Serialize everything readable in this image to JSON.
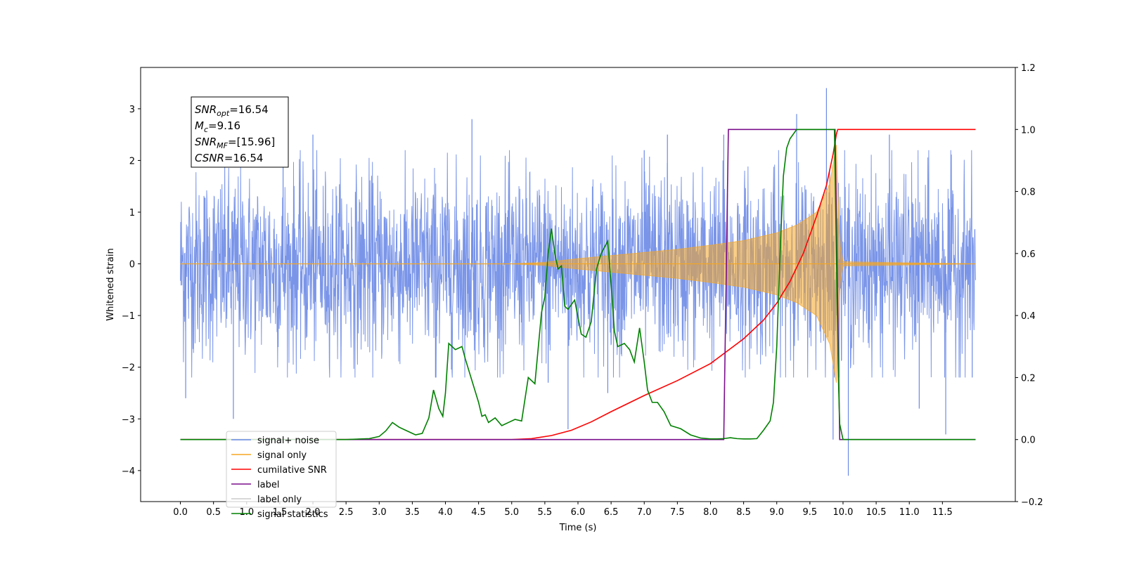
{
  "chart_data": {
    "type": "line",
    "title": "",
    "xlabel": "Time (s)",
    "ylabel": "Whitened strain",
    "y2label": "",
    "xlim": [
      -0.6,
      12.6
    ],
    "ylim": [
      -4.6,
      3.8
    ],
    "y2lim": [
      -0.2,
      1.2
    ],
    "xticks": [
      0.0,
      0.5,
      1.0,
      1.5,
      2.0,
      2.5,
      3.0,
      3.5,
      4.0,
      4.5,
      5.0,
      5.5,
      6.0,
      6.5,
      7.0,
      7.5,
      8.0,
      8.5,
      9.0,
      9.5,
      10.0,
      10.5,
      11.0,
      11.5
    ],
    "xtick_labels": [
      "0.0",
      "0.5",
      "1.0",
      "1.5",
      "2.0",
      "2.5",
      "3.0",
      "3.5",
      "4.0",
      "4.5",
      "5.0",
      "5.5",
      "6.0",
      "6.5",
      "7.0",
      "7.5",
      "8.0",
      "8.5",
      "9.0",
      "9.5",
      "10.0",
      "10.5",
      "11.0",
      "11.5"
    ],
    "yticks": [
      -4,
      -3,
      -2,
      -1,
      0,
      1,
      2,
      3
    ],
    "ytick_labels": [
      "−4",
      "−3",
      "−2",
      "−1",
      "0",
      "1",
      "2",
      "3"
    ],
    "y2ticks": [
      -0.2,
      0.0,
      0.2,
      0.4,
      0.6,
      0.8,
      1.0,
      1.2
    ],
    "y2tick_labels": [
      "−0.2",
      "0.0",
      "0.2",
      "0.4",
      "0.6",
      "0.8",
      "1.0",
      "1.2"
    ],
    "grid": false,
    "legend_position": "bottom-left",
    "series": [
      {
        "name": "signal+ noise",
        "color": "#6b8ae6",
        "axis": "left",
        "kind": "noise",
        "x_range": [
          0.0,
          12.0
        ],
        "typical_range": [
          -1.5,
          1.4
        ],
        "extremes": [
          [
            0.08,
            -2.6
          ],
          [
            0.8,
            -3.0
          ],
          [
            1.55,
            2.3
          ],
          [
            2.0,
            2.5
          ],
          [
            3.85,
            -2.2
          ],
          [
            4.4,
            2.8
          ],
          [
            5.55,
            -2.3
          ],
          [
            5.85,
            -3.2
          ],
          [
            6.45,
            -2.5
          ],
          [
            7.0,
            2.2
          ],
          [
            7.35,
            2.5
          ],
          [
            8.2,
            2.5
          ],
          [
            9.3,
            2.9
          ],
          [
            9.75,
            3.4
          ],
          [
            9.85,
            -3.4
          ],
          [
            10.08,
            -4.1
          ],
          [
            10.7,
            2.5
          ],
          [
            11.15,
            -2.8
          ],
          [
            11.55,
            -3.3
          ],
          [
            11.95,
            -2.2
          ]
        ]
      },
      {
        "name": "signal only",
        "color": "#f5a623",
        "axis": "left",
        "kind": "chirp",
        "x": [
          0.0,
          5.0,
          5.5,
          6.0,
          6.5,
          7.0,
          7.5,
          8.0,
          8.5,
          9.0,
          9.3,
          9.6,
          9.8,
          9.9,
          9.95,
          10.0,
          12.0
        ],
        "envelope": [
          0.0,
          0.0,
          0.03,
          0.1,
          0.16,
          0.22,
          0.28,
          0.36,
          0.45,
          0.6,
          0.75,
          1.0,
          1.55,
          2.3,
          0.4,
          0.04,
          0.0
        ]
      },
      {
        "name": "cumilative SNR",
        "color": "#ff0000",
        "axis": "right",
        "x": [
          0.0,
          5.0,
          5.3,
          5.6,
          5.9,
          6.2,
          6.5,
          7.0,
          7.5,
          8.0,
          8.5,
          8.8,
          9.0,
          9.2,
          9.4,
          9.6,
          9.75,
          9.85,
          9.9,
          9.92,
          12.0
        ],
        "y": [
          0.0,
          0.0,
          0.003,
          0.013,
          0.03,
          0.057,
          0.09,
          0.142,
          0.19,
          0.245,
          0.325,
          0.385,
          0.44,
          0.51,
          0.6,
          0.72,
          0.82,
          0.92,
          0.985,
          1.0,
          1.0
        ]
      },
      {
        "name": "label",
        "color": "#7b0f8c",
        "axis": "right",
        "x": [
          0.0,
          8.2,
          8.27,
          9.88,
          9.95,
          12.0
        ],
        "y": [
          0.0,
          0.0,
          1.0,
          1.0,
          0.0,
          0.0
        ]
      },
      {
        "name": "label only",
        "color": "#cccccc",
        "axis": "right",
        "x": [],
        "y": []
      },
      {
        "name": "signal statistics",
        "color": "#008000",
        "axis": "right",
        "x": [
          0.0,
          2.5,
          2.85,
          3.0,
          3.1,
          3.2,
          3.3,
          3.4,
          3.5,
          3.55,
          3.65,
          3.75,
          3.82,
          3.9,
          3.96,
          4.0,
          4.05,
          4.15,
          4.25,
          4.3,
          4.4,
          4.5,
          4.55,
          4.6,
          4.65,
          4.75,
          4.85,
          4.95,
          5.05,
          5.15,
          5.25,
          5.35,
          5.45,
          5.5,
          5.55,
          5.6,
          5.65,
          5.7,
          5.75,
          5.8,
          5.85,
          5.95,
          6.05,
          6.12,
          6.2,
          6.28,
          6.35,
          6.45,
          6.5,
          6.55,
          6.6,
          6.7,
          6.78,
          6.85,
          6.93,
          7.0,
          7.05,
          7.12,
          7.2,
          7.3,
          7.4,
          7.55,
          7.7,
          7.85,
          8.0,
          8.1,
          8.2,
          8.3,
          8.4,
          8.5,
          8.6,
          8.7,
          8.8,
          8.9,
          8.95,
          9.0,
          9.05,
          9.1,
          9.15,
          9.2,
          9.3,
          9.5,
          9.8,
          9.87,
          9.9,
          9.93,
          9.95,
          10.0,
          12.0
        ],
        "y": [
          0.0,
          0.0,
          0.003,
          0.01,
          0.028,
          0.055,
          0.04,
          0.03,
          0.02,
          0.015,
          0.02,
          0.07,
          0.16,
          0.1,
          0.075,
          0.15,
          0.31,
          0.29,
          0.3,
          0.26,
          0.19,
          0.12,
          0.075,
          0.08,
          0.055,
          0.07,
          0.045,
          0.055,
          0.065,
          0.06,
          0.2,
          0.18,
          0.41,
          0.46,
          0.6,
          0.68,
          0.6,
          0.55,
          0.56,
          0.43,
          0.42,
          0.45,
          0.34,
          0.33,
          0.38,
          0.55,
          0.6,
          0.64,
          0.5,
          0.35,
          0.3,
          0.31,
          0.29,
          0.25,
          0.36,
          0.25,
          0.16,
          0.12,
          0.12,
          0.09,
          0.045,
          0.035,
          0.015,
          0.005,
          0.002,
          0.002,
          0.003,
          0.006,
          0.003,
          0.002,
          0.002,
          0.003,
          0.03,
          0.06,
          0.12,
          0.3,
          0.6,
          0.85,
          0.94,
          0.97,
          1.0,
          1.0,
          1.0,
          1.0,
          0.6,
          0.2,
          0.05,
          0.0,
          0.0
        ]
      }
    ],
    "annotation": {
      "lines": [
        {
          "prefix": "",
          "sym": "SNR",
          "sub": "opt",
          "rest": "=16.54"
        },
        {
          "prefix": "",
          "sym": "M",
          "sub": "c",
          "rest": "=9.16"
        },
        {
          "prefix": "",
          "sym": "SNR",
          "sub": "MF",
          "rest": "=[15.96]"
        },
        {
          "prefix": "",
          "sym": "CSNR",
          "sub": "",
          "rest": "=16.54"
        }
      ]
    }
  }
}
